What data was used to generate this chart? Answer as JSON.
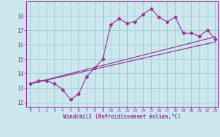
{
  "xlabel": "Windchill (Refroidissement éolien,°C)",
  "bg_color": "#cce8ee",
  "line_color": "#993399",
  "grid_color": "#99cccc",
  "xlim": [
    -0.5,
    23.3
  ],
  "ylim": [
    11.7,
    19.0
  ],
  "xticks": [
    0,
    1,
    2,
    3,
    4,
    5,
    6,
    7,
    8,
    9,
    10,
    11,
    12,
    13,
    14,
    15,
    16,
    17,
    18,
    19,
    20,
    21,
    22,
    23
  ],
  "yticks": [
    12,
    13,
    14,
    15,
    16,
    17,
    18
  ],
  "jagged_x": [
    0,
    1,
    2,
    3,
    4,
    5,
    6,
    7,
    8,
    9,
    10,
    11,
    12,
    13,
    14,
    15,
    16,
    17,
    18,
    19,
    20,
    21,
    22,
    23
  ],
  "jagged_y": [
    13.3,
    13.5,
    13.5,
    13.3,
    12.9,
    12.2,
    12.6,
    13.8,
    14.4,
    15.0,
    17.4,
    17.8,
    17.5,
    17.6,
    18.1,
    18.5,
    17.9,
    17.6,
    17.9,
    16.8,
    16.8,
    16.6,
    17.0,
    16.4
  ],
  "line1_x": [
    0,
    23
  ],
  "line1_y": [
    13.3,
    16.2
  ],
  "line2_x": [
    0,
    23
  ],
  "line2_y": [
    13.3,
    16.55
  ]
}
